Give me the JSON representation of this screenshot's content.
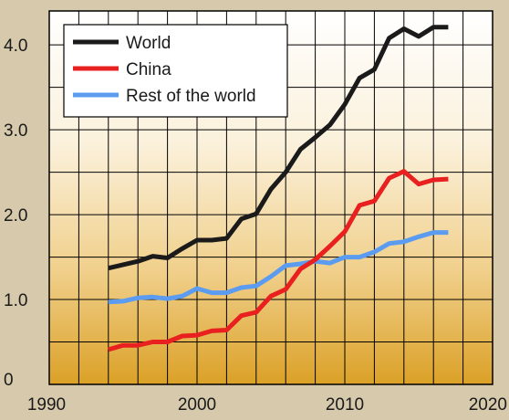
{
  "chart_data": {
    "type": "line",
    "title": "",
    "xlabel": "",
    "ylabel": "",
    "xlim": [
      1990,
      2020
    ],
    "ylim": [
      0,
      4.4
    ],
    "x_ticks": [
      1990,
      2000,
      2010,
      2020
    ],
    "y_ticks": [
      0,
      1.0,
      2.0,
      3.0,
      4.0
    ],
    "x_tick_labels": [
      "1990",
      "2000",
      "2010",
      "2020"
    ],
    "y_tick_labels": [
      "0",
      "1.0",
      "2.0",
      "3.0",
      "4.0"
    ],
    "grid": true,
    "legend_position": "top-left",
    "colors": {
      "World": "#1a1a1a",
      "China": "#e8201f",
      "Rest of the world": "#5b9cf0",
      "page_background": "#d6c9ac",
      "plot_gradient_top": "#ffffff",
      "plot_gradient_bottom": "#dba127"
    },
    "x": [
      1994,
      1995,
      1996,
      1997,
      1998,
      1999,
      2000,
      2001,
      2002,
      2003,
      2004,
      2005,
      2006,
      2007,
      2008,
      2009,
      2010,
      2011,
      2012,
      2013,
      2014,
      2015,
      2016,
      2017
    ],
    "series": [
      {
        "name": "World",
        "values": [
          1.37,
          1.41,
          1.45,
          1.51,
          1.49,
          1.6,
          1.7,
          1.7,
          1.72,
          1.95,
          2.01,
          2.3,
          2.5,
          2.77,
          2.91,
          3.06,
          3.3,
          3.61,
          3.71,
          4.08,
          4.19,
          4.1,
          4.21,
          4.21
        ]
      },
      {
        "name": "China",
        "values": [
          0.41,
          0.46,
          0.46,
          0.5,
          0.5,
          0.57,
          0.58,
          0.63,
          0.64,
          0.81,
          0.85,
          1.04,
          1.12,
          1.36,
          1.47,
          1.63,
          1.8,
          2.11,
          2.16,
          2.43,
          2.51,
          2.36,
          2.41,
          2.42
        ]
      },
      {
        "name": "Rest of the world",
        "values": [
          0.97,
          0.98,
          1.02,
          1.03,
          1.01,
          1.04,
          1.13,
          1.08,
          1.08,
          1.14,
          1.16,
          1.27,
          1.4,
          1.42,
          1.45,
          1.43,
          1.5,
          1.5,
          1.56,
          1.66,
          1.68,
          1.74,
          1.79,
          1.79
        ]
      }
    ]
  }
}
